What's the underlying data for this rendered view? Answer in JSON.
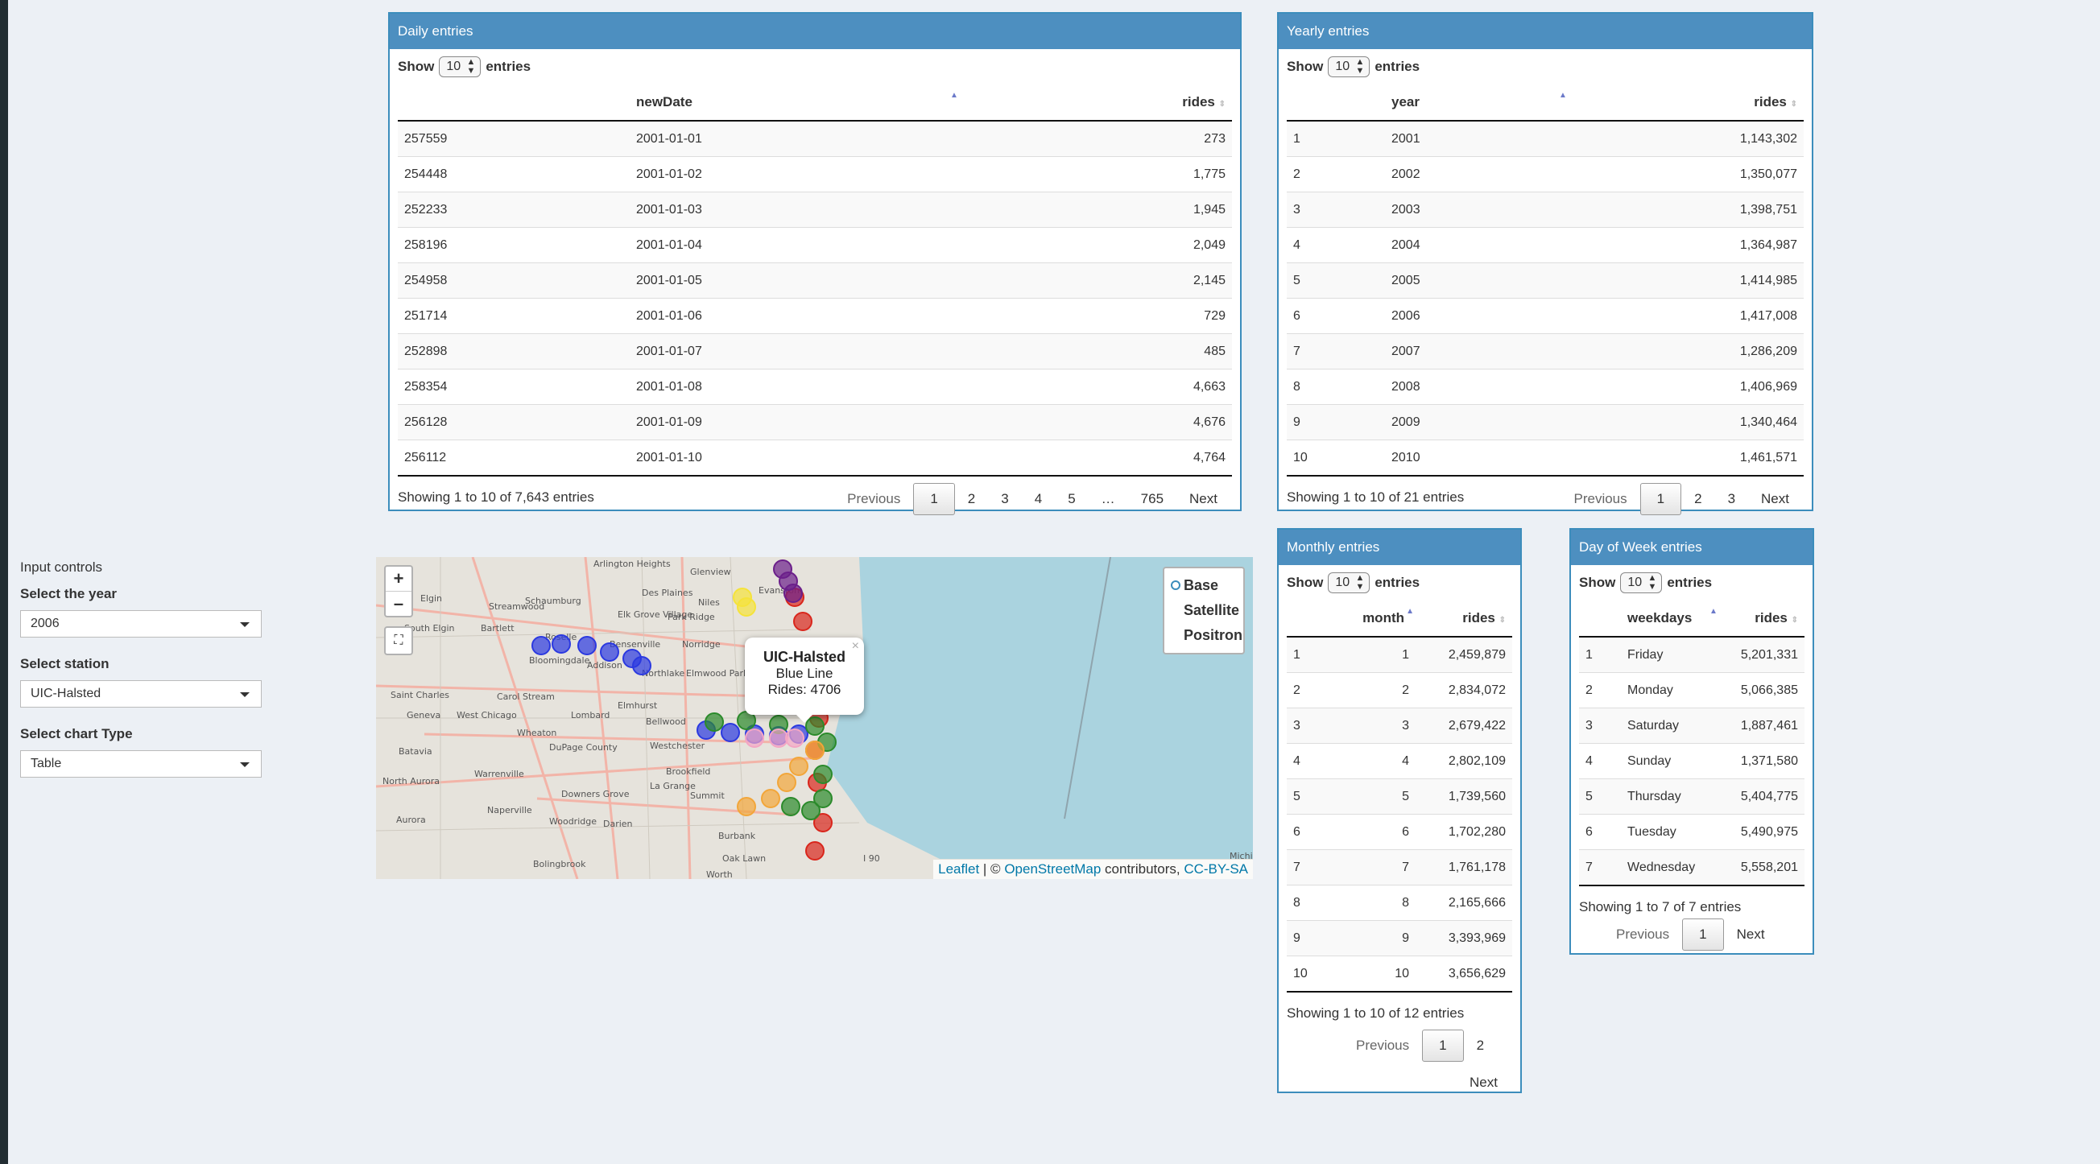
{
  "sidebar": {
    "section_title": "Input controls",
    "year": {
      "label": "Select the year",
      "value": "2006"
    },
    "station": {
      "label": "Select station",
      "value": "UIC-Halsted"
    },
    "chart_type": {
      "label": "Select chart Type",
      "value": "Table"
    }
  },
  "common": {
    "show": "Show",
    "entries": "entries",
    "length_value": "10",
    "previous": "Previous",
    "next": "Next"
  },
  "daily": {
    "title": "Daily entries",
    "headers": [
      "",
      "newDate",
      "rides"
    ],
    "rows": [
      [
        "257559",
        "2001-01-01",
        "273"
      ],
      [
        "254448",
        "2001-01-02",
        "1,775"
      ],
      [
        "252233",
        "2001-01-03",
        "1,945"
      ],
      [
        "258196",
        "2001-01-04",
        "2,049"
      ],
      [
        "254958",
        "2001-01-05",
        "2,145"
      ],
      [
        "251714",
        "2001-01-06",
        "729"
      ],
      [
        "252898",
        "2001-01-07",
        "485"
      ],
      [
        "258354",
        "2001-01-08",
        "4,663"
      ],
      [
        "256128",
        "2001-01-09",
        "4,676"
      ],
      [
        "256112",
        "2001-01-10",
        "4,764"
      ]
    ],
    "info": "Showing 1 to 10 of 7,643 entries",
    "pages": [
      "1",
      "2",
      "3",
      "4",
      "5",
      "…",
      "765"
    ]
  },
  "yearly": {
    "title": "Yearly entries",
    "headers": [
      "",
      "year",
      "rides"
    ],
    "rows": [
      [
        "1",
        "2001",
        "1,143,302"
      ],
      [
        "2",
        "2002",
        "1,350,077"
      ],
      [
        "3",
        "2003",
        "1,398,751"
      ],
      [
        "4",
        "2004",
        "1,364,987"
      ],
      [
        "5",
        "2005",
        "1,414,985"
      ],
      [
        "6",
        "2006",
        "1,417,008"
      ],
      [
        "7",
        "2007",
        "1,286,209"
      ],
      [
        "8",
        "2008",
        "1,406,969"
      ],
      [
        "9",
        "2009",
        "1,340,464"
      ],
      [
        "10",
        "2010",
        "1,461,571"
      ]
    ],
    "info": "Showing 1 to 10 of 21 entries",
    "pages": [
      "1",
      "2",
      "3"
    ]
  },
  "monthly": {
    "title": "Monthly entries",
    "headers": [
      "",
      "month",
      "rides"
    ],
    "rows": [
      [
        "1",
        "1",
        "2,459,879"
      ],
      [
        "2",
        "2",
        "2,834,072"
      ],
      [
        "3",
        "3",
        "2,679,422"
      ],
      [
        "4",
        "4",
        "2,802,109"
      ],
      [
        "5",
        "5",
        "1,739,560"
      ],
      [
        "6",
        "6",
        "1,702,280"
      ],
      [
        "7",
        "7",
        "1,761,178"
      ],
      [
        "8",
        "8",
        "2,165,666"
      ],
      [
        "9",
        "9",
        "3,393,969"
      ],
      [
        "10",
        "10",
        "3,656,629"
      ]
    ],
    "info": "Showing 1 to 10 of 12 entries",
    "pages": [
      "1",
      "2"
    ]
  },
  "weekday": {
    "title": "Day of Week entries",
    "headers": [
      "",
      "weekdays",
      "rides"
    ],
    "rows": [
      [
        "1",
        "Friday",
        "5,201,331"
      ],
      [
        "2",
        "Monday",
        "5,066,385"
      ],
      [
        "3",
        "Saturday",
        "1,887,461"
      ],
      [
        "4",
        "Sunday",
        "1,371,580"
      ],
      [
        "5",
        "Thursday",
        "5,404,775"
      ],
      [
        "6",
        "Tuesday",
        "5,490,975"
      ],
      [
        "7",
        "Wednesday",
        "5,558,201"
      ]
    ],
    "info": "Showing 1 to 7 of 7 entries",
    "pages": [
      "1"
    ]
  },
  "map": {
    "zoom_in": "+",
    "zoom_out": "–",
    "fullscreen": "⛶",
    "layers": [
      "Base",
      "Satellite",
      "Positron"
    ],
    "popup": {
      "title": "UIC-Halsted",
      "line": "Blue Line",
      "rides": "Rides: 4706",
      "close": "×"
    },
    "attribution": {
      "leaflet": "Leaflet",
      "sep": " | © ",
      "osm": "OpenStreetMap",
      "contrib": " contributors, ",
      "license": "CC-BY-SA"
    },
    "line_colors": {
      "blue": "#2b39e0",
      "red": "#d9261c",
      "green": "#2b8a2b",
      "orange": "#f2a63a",
      "purple": "#6b1f8a",
      "yellow": "#f5e33a",
      "pink": "#f3a6c4"
    },
    "place_labels": [
      "Arlington Heights",
      "Glenview",
      "Evanston",
      "Schaumburg",
      "Des Plaines",
      "Niles",
      "Elgin",
      "Streamwood",
      "Elk Grove Village",
      "Park Ridge",
      "South Elgin",
      "Bartlett",
      "Roselle",
      "Bensenville",
      "Norridge",
      "Bloomingdale",
      "Addison",
      "Northlake",
      "Elmwood Park",
      "Saint Charles",
      "Carol Stream",
      "Geneva",
      "West Chicago",
      "Lombard",
      "Elmhurst",
      "Bellwood",
      "Wheaton",
      "Batavia",
      "DuPage County",
      "Westchester",
      "North Aurora",
      "Warrenville",
      "Brookfield",
      "La Grange",
      "Downers Grove",
      "Summit",
      "Aurora",
      "Naperville",
      "Woodridge",
      "Darien",
      "Burbank",
      "Oak Lawn",
      "Bolingbrook",
      "Worth",
      "I 90",
      "Michig"
    ]
  }
}
